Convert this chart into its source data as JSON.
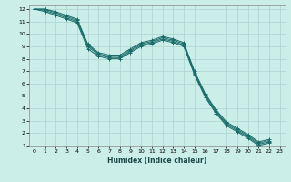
{
  "xlabel": "Humidex (Indice chaleur)",
  "background_color": "#cceee8",
  "grid_color": "#aad4ce",
  "line_color": "#1a6b6b",
  "xlim": [
    -0.5,
    23.5
  ],
  "ylim": [
    1,
    12.3
  ],
  "xticks": [
    0,
    1,
    2,
    3,
    4,
    5,
    6,
    7,
    8,
    9,
    10,
    11,
    12,
    13,
    14,
    15,
    16,
    17,
    18,
    19,
    20,
    21,
    22,
    23
  ],
  "yticks": [
    1,
    2,
    3,
    4,
    5,
    6,
    7,
    8,
    9,
    10,
    11,
    12
  ],
  "series": [
    [
      12.0,
      12.0,
      11.8,
      11.5,
      11.2,
      9.2,
      8.5,
      8.3,
      8.3,
      8.8,
      9.3,
      9.5,
      9.8,
      9.6,
      9.3,
      7.0,
      5.2,
      3.9,
      2.9,
      2.4,
      1.9,
      1.3,
      1.5
    ],
    [
      12.0,
      12.0,
      11.7,
      11.4,
      11.1,
      9.1,
      8.4,
      8.2,
      8.2,
      8.7,
      9.2,
      9.4,
      9.7,
      9.5,
      9.2,
      6.9,
      5.1,
      3.8,
      2.8,
      2.3,
      1.8,
      1.2,
      1.4
    ],
    [
      12.0,
      11.9,
      11.6,
      11.3,
      11.0,
      9.0,
      8.3,
      8.1,
      8.1,
      8.6,
      9.1,
      9.3,
      9.6,
      9.4,
      9.1,
      6.8,
      5.0,
      3.7,
      2.7,
      2.2,
      1.7,
      1.1,
      1.3
    ],
    [
      12.0,
      11.8,
      11.5,
      11.2,
      10.9,
      8.8,
      8.2,
      8.0,
      8.0,
      8.5,
      9.0,
      9.2,
      9.5,
      9.3,
      9.0,
      6.7,
      4.9,
      3.6,
      2.6,
      2.1,
      1.6,
      1.0,
      1.2
    ]
  ]
}
